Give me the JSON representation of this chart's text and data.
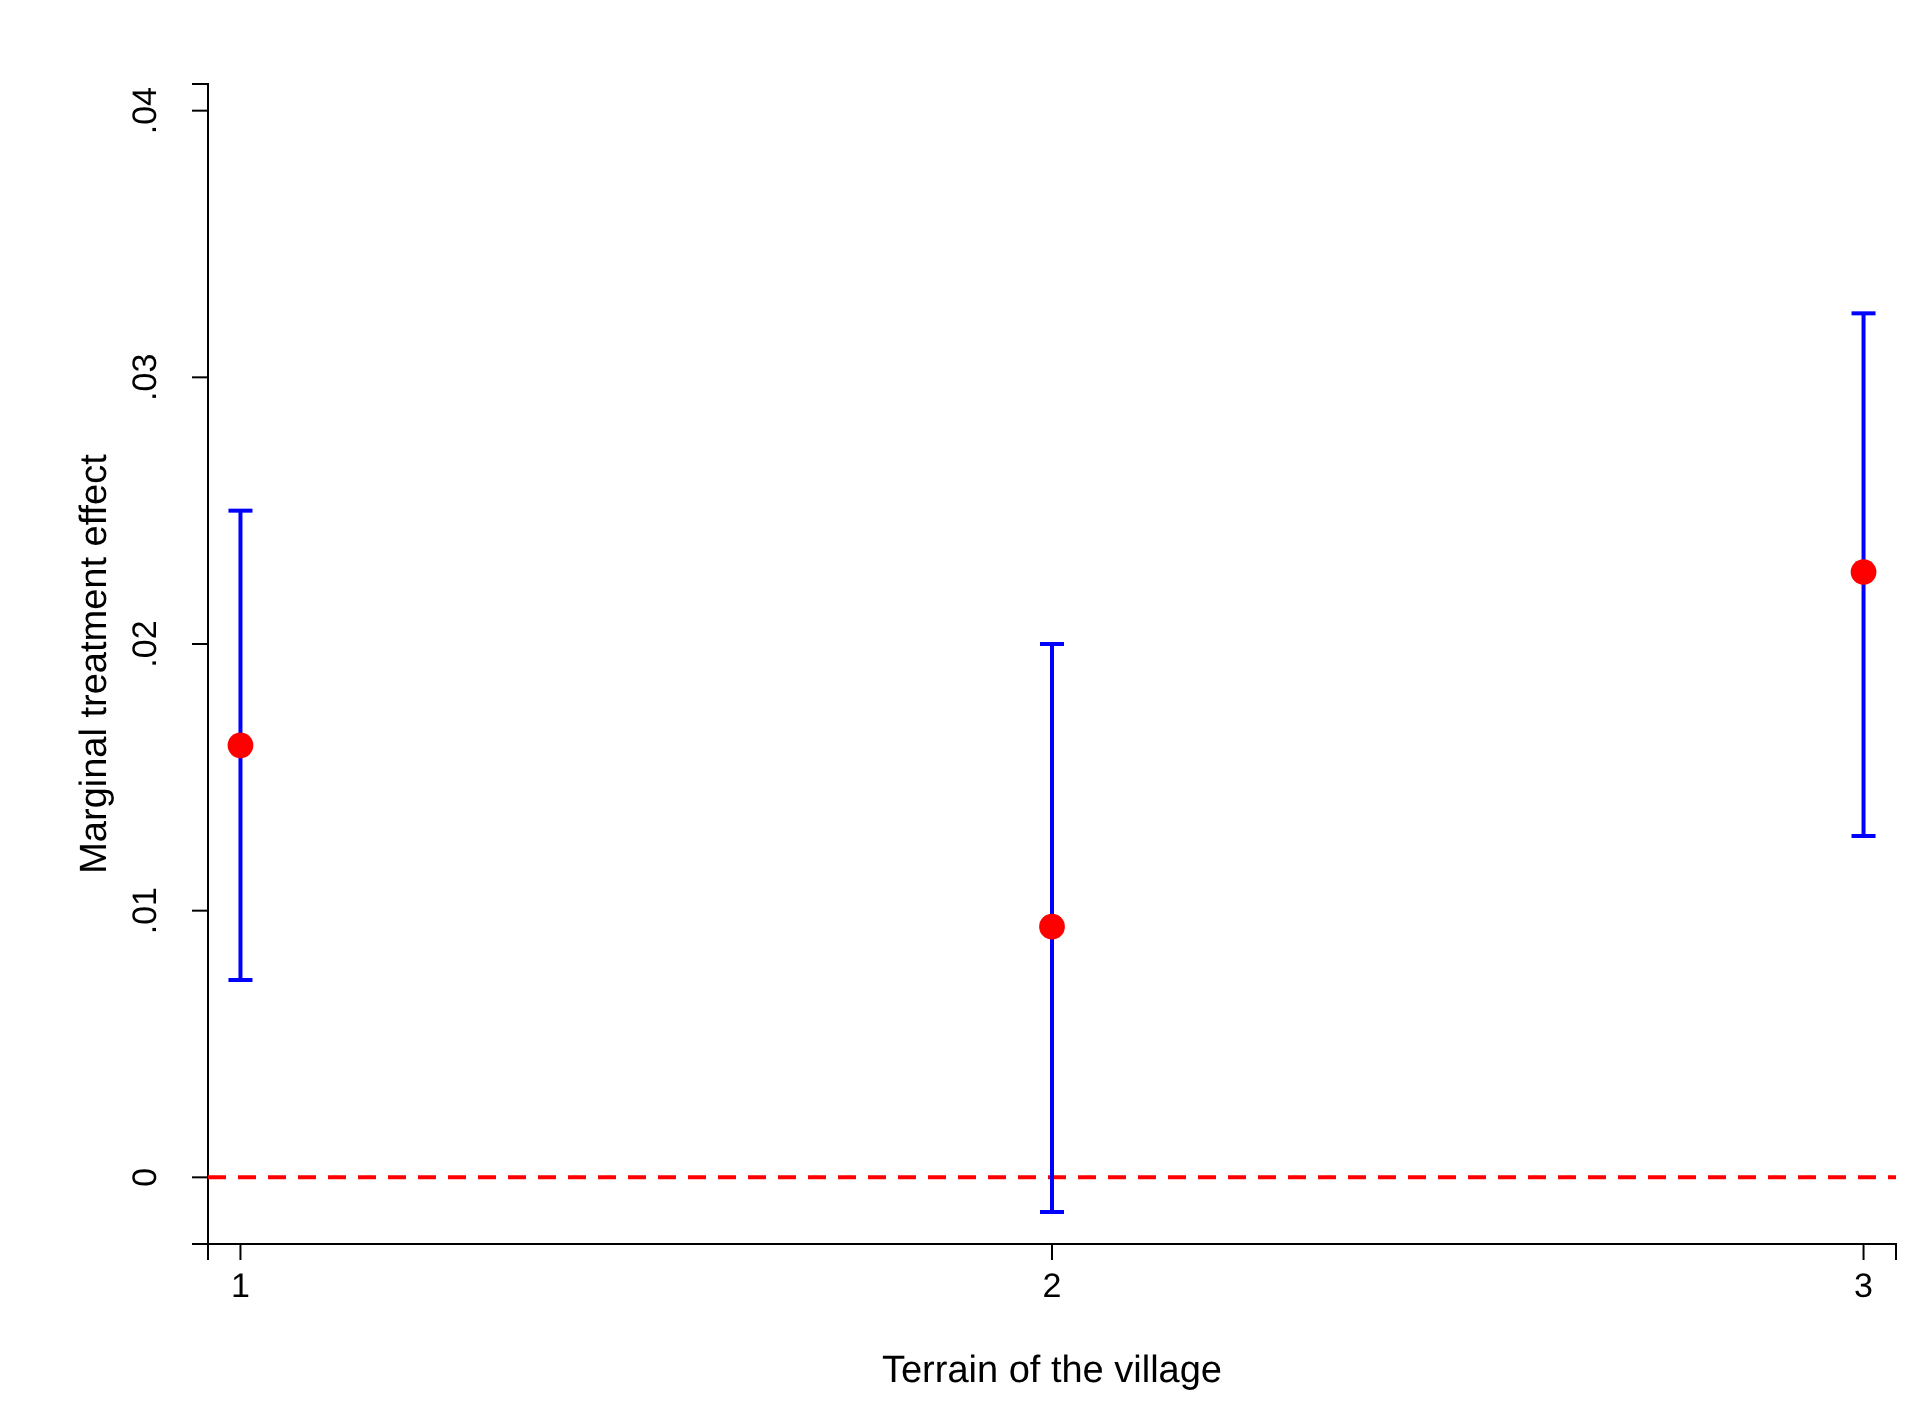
{
  "chart_data": {
    "type": "scatter",
    "xlabel": "Terrain of the village",
    "ylabel": "Marginal treatment effect",
    "x": [
      1,
      2,
      3
    ],
    "values": [
      0.0162,
      0.0094,
      0.0227
    ],
    "color": "#ff0000",
    "marker": "circle",
    "errors": [
      [
        0.0074,
        0.025
      ],
      [
        -0.0013,
        0.02
      ],
      [
        0.0128,
        0.0324
      ]
    ],
    "xlim": [
      0.96,
      3.04
    ],
    "xticks": [
      1,
      2,
      3
    ],
    "ylim": [
      -0.0025,
      0.041
    ],
    "yticks": [
      {
        "value": 0,
        "label": "0"
      },
      {
        "value": 0.01,
        "label": ".01"
      },
      {
        "value": 0.02,
        "label": ".02"
      },
      {
        "value": 0.03,
        "label": ".03"
      },
      {
        "value": 0.04,
        "label": ".04"
      }
    ],
    "ref_lines": [
      {
        "axis": "y",
        "value": 0,
        "color": "#ff0000",
        "line_style": "dashed"
      }
    ],
    "grid": false
  }
}
